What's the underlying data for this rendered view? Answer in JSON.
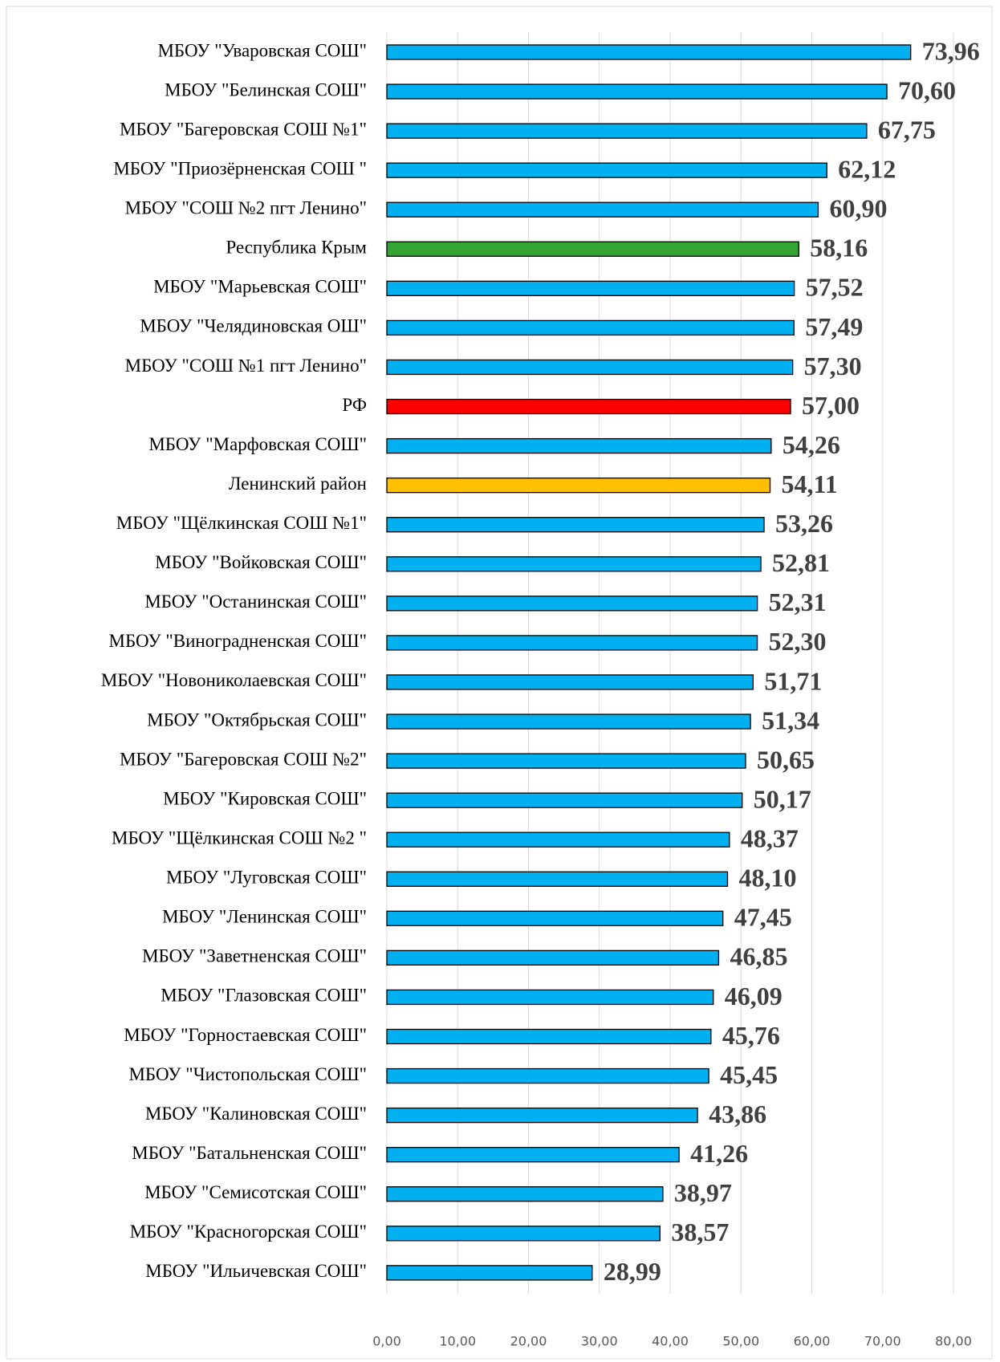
{
  "chart_data": {
    "type": "barh",
    "categories": [
      "МБОУ \"Уваровская СОШ\"",
      "МБОУ \"Белинская СОШ\"",
      "МБОУ \"Багеровская СОШ №1\"",
      "МБОУ \"Приозёрненская СОШ \"",
      "МБОУ \"СОШ №2 пгт Ленино\"",
      "Республика Крым",
      "МБОУ \"Марьевская СОШ\"",
      "МБОУ \"Челядиновская ОШ\"",
      "МБОУ \"СОШ №1 пгт Ленино\"",
      "РФ",
      "МБОУ \"Марфовская СОШ\"",
      "Ленинский район",
      "МБОУ \"Щёлкинская СОШ №1\"",
      "МБОУ \"Войковская СОШ\"",
      "МБОУ \"Останинская СОШ\"",
      "МБОУ \"Виноградненская СОШ\"",
      "МБОУ \"Новониколаевская СОШ\"",
      "МБОУ \"Октябрьская СОШ\"",
      "МБОУ \"Багеровская СОШ №2\"",
      "МБОУ \"Кировская СОШ\"",
      "МБОУ \"Щёлкинская СОШ №2 \"",
      "МБОУ \"Луговская СОШ\"",
      "МБОУ \"Ленинская СОШ\"",
      "МБОУ \"Заветненская СОШ\"",
      "МБОУ \"Глазовская СОШ\"",
      "МБОУ \"Горностаевская СОШ\"",
      "МБОУ \"Чистопольская СОШ\"",
      "МБОУ \"Калиновская СОШ\"",
      "МБОУ \"Батальненская СОШ\"",
      "МБОУ \"Семисотская СОШ\"",
      "МБОУ \"Красногорская СОШ\"",
      "МБОУ \"Ильичевская СОШ\""
    ],
    "values": [
      73.96,
      70.6,
      67.75,
      62.12,
      60.9,
      58.16,
      57.52,
      57.49,
      57.3,
      57.0,
      54.26,
      54.11,
      53.26,
      52.81,
      52.31,
      52.3,
      51.71,
      51.34,
      50.65,
      50.17,
      48.37,
      48.1,
      47.45,
      46.85,
      46.09,
      45.76,
      45.45,
      43.86,
      41.26,
      38.97,
      38.57,
      28.99
    ],
    "value_labels": [
      "73,96",
      "70,60",
      "67,75",
      "62,12",
      "60,90",
      "58,16",
      "57,52",
      "57,49",
      "57,30",
      "57,00",
      "54,26",
      "54,11",
      "53,26",
      "52,81",
      "52,31",
      "52,30",
      "51,71",
      "51,34",
      "50,65",
      "50,17",
      "48,37",
      "48,10",
      "47,45",
      "46,85",
      "46,09",
      "45,76",
      "45,45",
      "43,86",
      "41,26",
      "38,97",
      "38,57",
      "28,99"
    ],
    "colors": [
      "#00b0f0",
      "#00b0f0",
      "#00b0f0",
      "#00b0f0",
      "#00b0f0",
      "#33a532",
      "#00b0f0",
      "#00b0f0",
      "#00b0f0",
      "#ff0000",
      "#00b0f0",
      "#ffc000",
      "#00b0f0",
      "#00b0f0",
      "#00b0f0",
      "#00b0f0",
      "#00b0f0",
      "#00b0f0",
      "#00b0f0",
      "#00b0f0",
      "#00b0f0",
      "#00b0f0",
      "#00b0f0",
      "#00b0f0",
      "#00b0f0",
      "#00b0f0",
      "#00b0f0",
      "#00b0f0",
      "#00b0f0",
      "#00b0f0",
      "#00b0f0",
      "#00b0f0"
    ],
    "xlim": [
      0,
      80
    ],
    "xticks": [
      {
        "value": 0,
        "label": "0,00"
      },
      {
        "value": 10,
        "label": "10,00"
      },
      {
        "value": 20,
        "label": "20,00"
      },
      {
        "value": 30,
        "label": "30,00"
      },
      {
        "value": 40,
        "label": "40,00"
      },
      {
        "value": 50,
        "label": "50,00"
      },
      {
        "value": 60,
        "label": "60,00"
      },
      {
        "value": 70,
        "label": "70,00"
      },
      {
        "value": 80,
        "label": "80,00"
      }
    ],
    "grid": true
  }
}
